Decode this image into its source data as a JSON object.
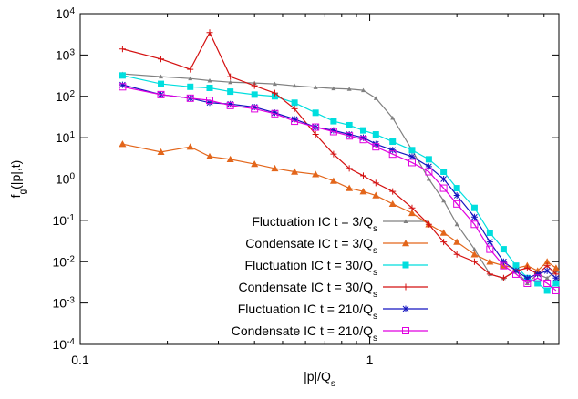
{
  "chart_data": {
    "type": "line",
    "xlabel": "|p|/Q_s",
    "ylabel": "f_g(|p|,t)",
    "log_x": true,
    "log_y": true,
    "legend": "lower center",
    "xlim": [
      0.1,
      4.5
    ],
    "ylim": [
      0.0001,
      10000
    ],
    "xticks": [
      0.1,
      1
    ],
    "yticks": [
      {
        "value": 0.0001,
        "label": "10^-4"
      },
      {
        "value": 0.001,
        "label": "10^-3"
      },
      {
        "value": 0.01,
        "label": "10^-2"
      },
      {
        "value": 0.1,
        "label": "10^-1"
      },
      {
        "value": 1,
        "label": "10^0"
      },
      {
        "value": 10,
        "label": "10^1"
      },
      {
        "value": 100,
        "label": "10^2"
      },
      {
        "value": 1000,
        "label": "10^3"
      },
      {
        "value": 10000,
        "label": "10^4"
      }
    ],
    "x": [
      0.14,
      0.19,
      0.24,
      0.28,
      0.33,
      0.4,
      0.47,
      0.55,
      0.65,
      0.75,
      0.85,
      0.95,
      1.05,
      1.2,
      1.4,
      1.6,
      1.8,
      2.0,
      2.3,
      2.6,
      2.9,
      3.2,
      3.5,
      3.8,
      4.1,
      4.4
    ],
    "series": [
      {
        "name": "Fluctuation IC t = 3/Q_s",
        "color": "#808080",
        "marker": "triangle-small",
        "values": [
          350,
          300,
          270,
          240,
          220,
          210,
          200,
          180,
          165,
          155,
          150,
          140,
          90,
          30,
          5,
          1,
          0.3,
          0.08,
          0.02,
          0.005,
          0.004,
          0.006,
          0.003,
          0.005,
          0.004,
          0.006
        ]
      },
      {
        "name": "Condensate IC t = 3/Q_s",
        "color": "#e3661b",
        "marker": "triangle",
        "values": [
          7,
          4.5,
          6,
          3.5,
          3,
          2.3,
          1.8,
          1.5,
          1.3,
          0.9,
          0.6,
          0.5,
          0.4,
          0.25,
          0.15,
          0.08,
          0.05,
          0.03,
          0.015,
          0.01,
          0.008,
          0.007,
          0.008,
          0.006,
          0.01,
          0.007
        ]
      },
      {
        "name": "Fluctuation IC t = 30/Q_s",
        "color": "#00dede",
        "marker": "square",
        "values": [
          320,
          200,
          170,
          160,
          130,
          110,
          100,
          70,
          40,
          25,
          20,
          15,
          12,
          8,
          5,
          3,
          1.5,
          0.6,
          0.2,
          0.05,
          0.02,
          0.008,
          0.004,
          0.003,
          0.002,
          0.003
        ]
      },
      {
        "name": "Condensate IC t = 30/Q_s",
        "color": "#d41010",
        "marker": "plus",
        "values": [
          1400,
          800,
          450,
          3500,
          300,
          180,
          120,
          50,
          12,
          4,
          1.8,
          1.2,
          0.8,
          0.5,
          0.2,
          0.08,
          0.03,
          0.015,
          0.01,
          0.005,
          0.004,
          0.006,
          0.007,
          0.005,
          0.008,
          0.005
        ]
      },
      {
        "name": "Fluctuation IC t = 210/Q_s",
        "color": "#1414c0",
        "marker": "star",
        "values": [
          190,
          110,
          90,
          70,
          65,
          55,
          40,
          28,
          18,
          15,
          12,
          10,
          7,
          5,
          3.5,
          2,
          1,
          0.4,
          0.12,
          0.03,
          0.01,
          0.006,
          0.004,
          0.005,
          0.006,
          0.004
        ]
      },
      {
        "name": "Condensate IC t = 210/Q_s",
        "color": "#e000e0",
        "marker": "open-square",
        "values": [
          170,
          110,
          90,
          80,
          60,
          50,
          38,
          25,
          18,
          14,
          11,
          9,
          6,
          4,
          2.5,
          1.5,
          0.6,
          0.25,
          0.08,
          0.02,
          0.008,
          0.005,
          0.003,
          0.004,
          0.003,
          0.002
        ]
      }
    ]
  }
}
